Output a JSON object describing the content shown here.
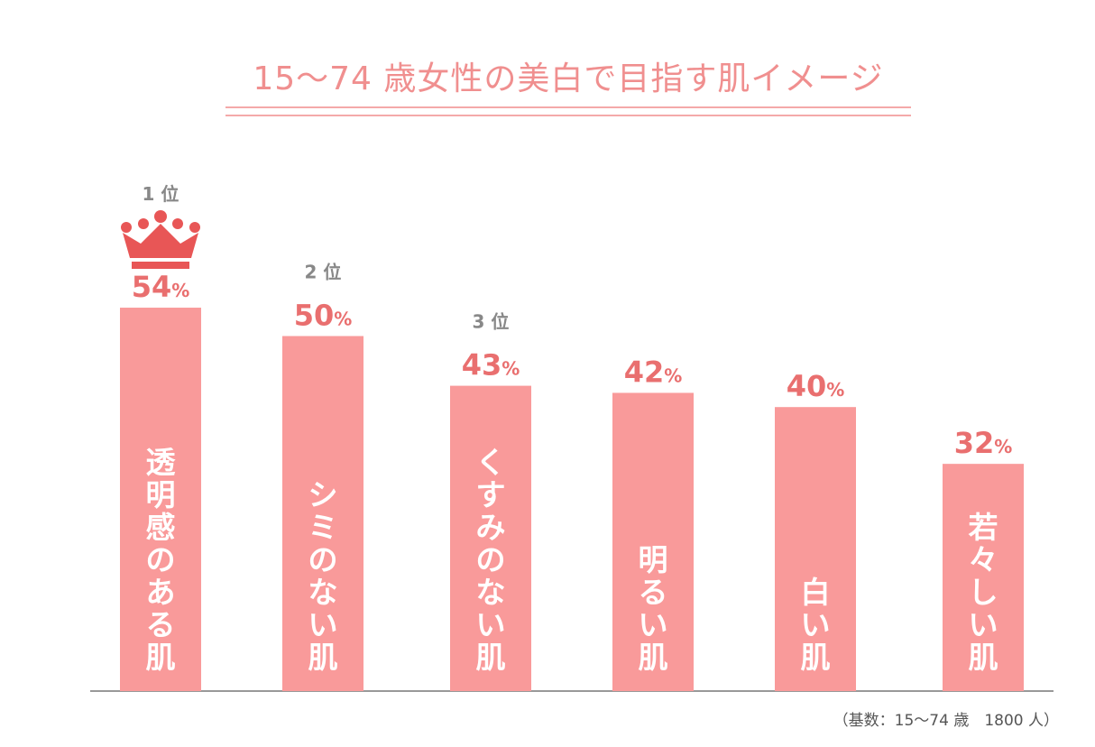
{
  "chart_data": {
    "type": "bar",
    "title": "15～74 歳女性の美白で目指す肌イメージ",
    "categories": [
      "透明感のある肌",
      "シミのない肌",
      "くすみのない肌",
      "明るい肌",
      "白い肌",
      "若々しい肌"
    ],
    "values": [
      54,
      50,
      43,
      42,
      40,
      32
    ],
    "value_unit": "%",
    "ranks": [
      {
        "category_index": 0,
        "label": "1 位"
      },
      {
        "category_index": 1,
        "label": "2 位"
      },
      {
        "category_index": 2,
        "label": "3 位"
      }
    ],
    "ylim": [
      0,
      100
    ],
    "grid": false,
    "legend": "none",
    "footnote": "（基数：15～74 歳　1800 人）"
  },
  "colors": {
    "bar": "#f99a9a",
    "value_label": "#e96f6f",
    "title": "#f08f8f",
    "crown": "#e85656",
    "rank_label": "#888888",
    "axis": "#999999"
  },
  "icons": {
    "top_rank": "crown-icon"
  }
}
